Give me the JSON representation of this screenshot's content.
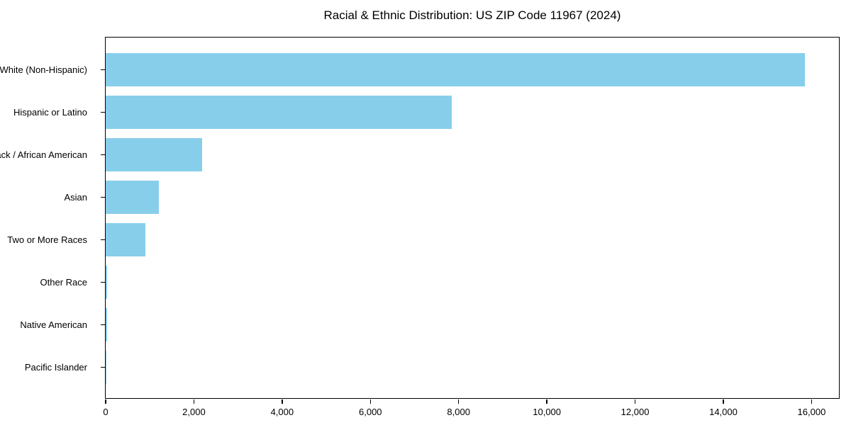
{
  "chart_data": {
    "type": "bar",
    "orientation": "horizontal",
    "title": "Racial & Ethnic Distribution: US ZIP Code 11967 (2024)",
    "categories": [
      "White (Non-Hispanic)",
      "Hispanic or Latino",
      "Black / African American",
      "Asian",
      "Two or More Races",
      "Other Race",
      "Native American",
      "Pacific Islander"
    ],
    "values": [
      15855,
      7840,
      2180,
      1200,
      895,
      35,
      25,
      10
    ],
    "xlabel": "",
    "ylabel": "",
    "xlim": [
      0,
      16620
    ],
    "x_ticks": [
      0,
      2000,
      4000,
      6000,
      8000,
      10000,
      12000,
      14000,
      16000
    ],
    "x_tick_labels": [
      "0",
      "2,000",
      "4,000",
      "6,000",
      "8,000",
      "10,000",
      "12,000",
      "14,000",
      "16,000"
    ],
    "bar_color": "#87CEEB",
    "grid": false,
    "legend": null,
    "background_color": "#ffffff",
    "axis_color": "#000000"
  }
}
